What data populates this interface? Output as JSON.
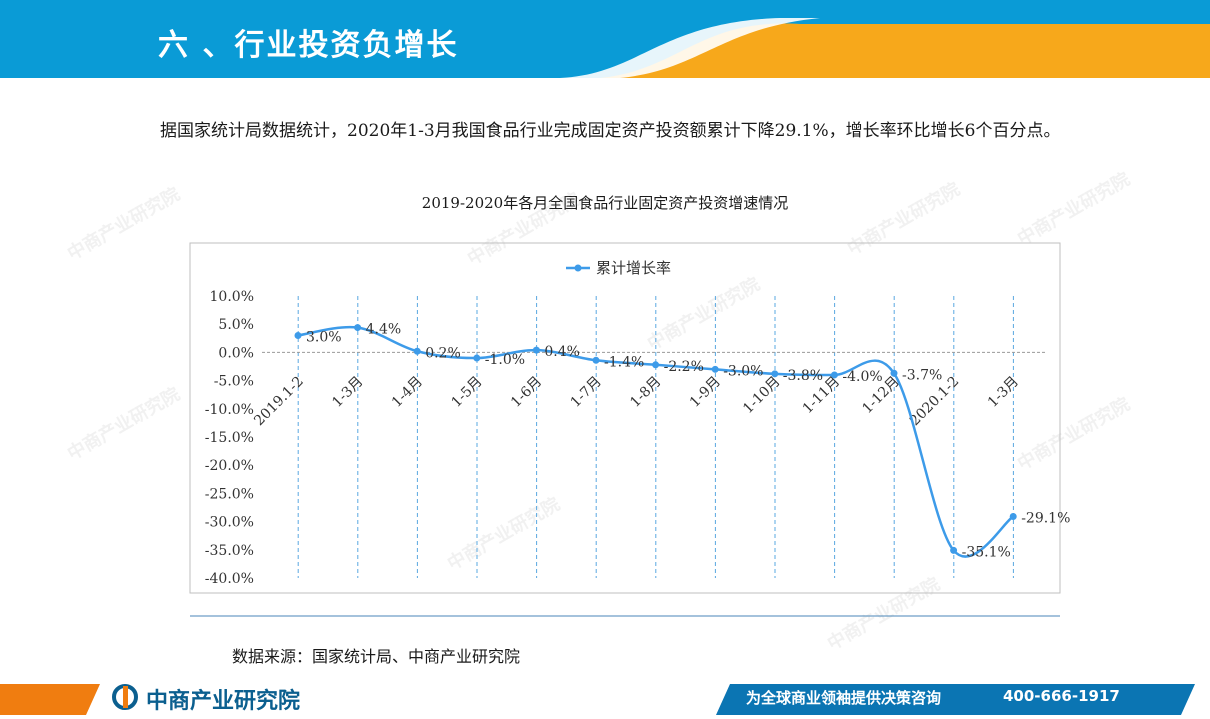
{
  "header": {
    "title": "六 、行业投资负增长"
  },
  "intro": "据国家统计局数据统计，2020年1-3月我国食品行业完成固定资产投资额累计下降29.1%，增长率环比增长6个百分点。",
  "chart_data": {
    "type": "line",
    "title": "2019-2020年各月全国食品行业固定资产投资增速情况",
    "categories": [
      "2019.1-2",
      "1-3月",
      "1-4月",
      "1-5月",
      "1-6月",
      "1-7月",
      "1-8月",
      "1-9月",
      "1-10月",
      "1-11月",
      "1-12月",
      "2020.1-2",
      "1-3月"
    ],
    "series": [
      {
        "name": "累计增长率",
        "values": [
          3.0,
          4.4,
          0.2,
          -1.0,
          0.4,
          -1.4,
          -2.2,
          -3.0,
          -3.8,
          -4.0,
          -3.7,
          -35.1,
          -29.1
        ],
        "labels": [
          "3.0%",
          "4.4%",
          "0.2%",
          "-1.0%",
          "0.4%",
          "-1.4%",
          "-2.2%",
          "-3.0%",
          "-3.8%",
          "-4.0%",
          "-3.7%",
          "-35.1%",
          "-29.1%"
        ]
      }
    ],
    "yticks": [
      "10.0%",
      "5.0%",
      "0.0%",
      "-5.0%",
      "-10.0%",
      "-15.0%",
      "-20.0%",
      "-25.0%",
      "-30.0%",
      "-35.0%",
      "-40.0%"
    ],
    "ylim": [
      -40,
      10
    ],
    "legend": "top-center",
    "colors": {
      "line": "#3d9be9",
      "grid": "#5aa8e0"
    }
  },
  "source": "数据来源：国家统计局、中商产业研究院",
  "footer": {
    "logo": "中商产业研究院",
    "slogan": "为全球商业领袖提供决策咨询",
    "phone": "400-666-1917"
  },
  "colors": {
    "header_blue": "#0a9bd6",
    "header_orange": "#f7a81b",
    "footer_blue": "#0b75b3",
    "footer_orange": "#f07d10"
  }
}
